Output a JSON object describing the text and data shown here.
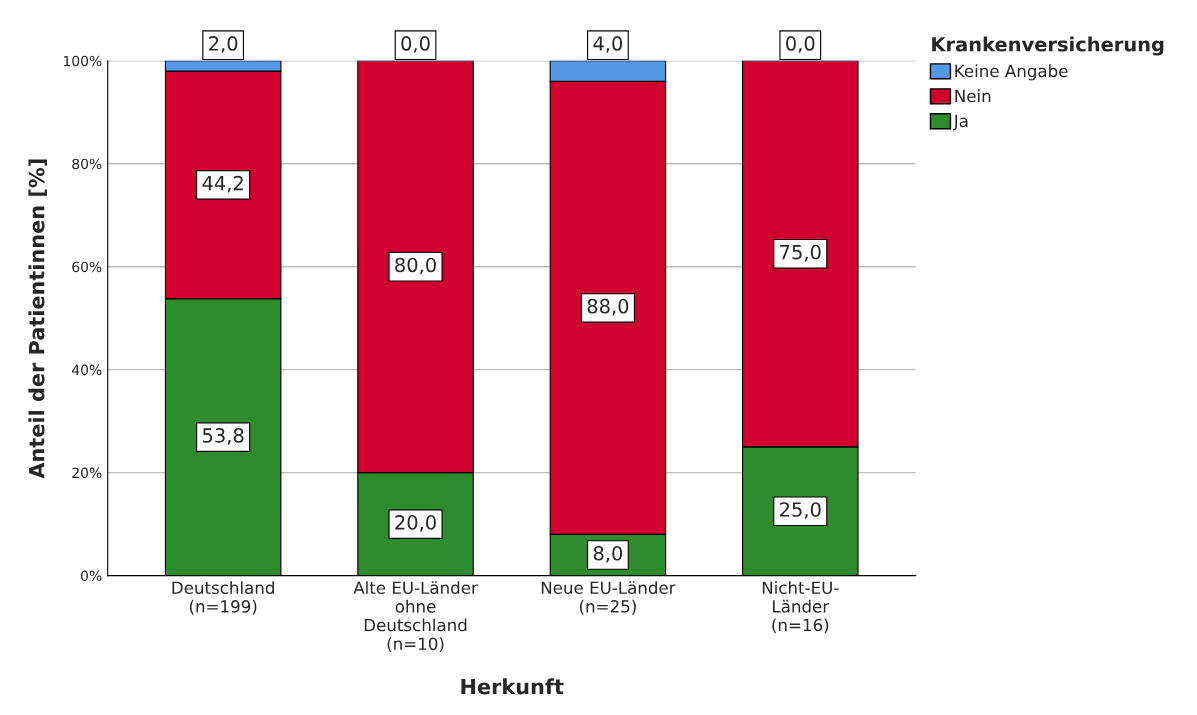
{
  "chart_data": {
    "type": "bar",
    "stacked": true,
    "xlabel": "Herkunft",
    "ylabel": "Anteil der Patientinnen [%]",
    "legend_title": "Krankenversicherung",
    "categories": [
      "Deutschland\n(n=199)",
      "Alte EU-Länder\nohne\nDeutschland\n(n=10)",
      "Neue EU-Länder\n(n=25)",
      "Nicht-EU-\nLänder\n(n=16)"
    ],
    "series": [
      {
        "name": "Ja",
        "color": "#2e8b2e",
        "values": [
          53.8,
          20.0,
          8.0,
          25.0
        ],
        "value_labels": [
          "53,8",
          "20,0",
          "8,0",
          "25,0"
        ]
      },
      {
        "name": "Nein",
        "color": "#d2002e",
        "values": [
          44.2,
          80.0,
          88.0,
          75.0
        ],
        "value_labels": [
          "44,2",
          "80,0",
          "88,0",
          "75,0"
        ]
      },
      {
        "name": "Keine Angabe",
        "color": "#5599e6",
        "values": [
          2.0,
          0.0,
          4.0,
          0.0
        ],
        "value_labels": [
          "2,0",
          "0,0",
          "4,0",
          "0,0"
        ]
      }
    ],
    "ylim": [
      0,
      100
    ],
    "yticks": [
      {
        "value": 0,
        "label": "0%"
      },
      {
        "value": 20,
        "label": "20%"
      },
      {
        "value": 40,
        "label": "40%"
      },
      {
        "value": 60,
        "label": "60%"
      },
      {
        "value": 80,
        "label": "80%"
      },
      {
        "value": 100,
        "label": "100%"
      }
    ],
    "grid": "y",
    "legend": "top right"
  }
}
